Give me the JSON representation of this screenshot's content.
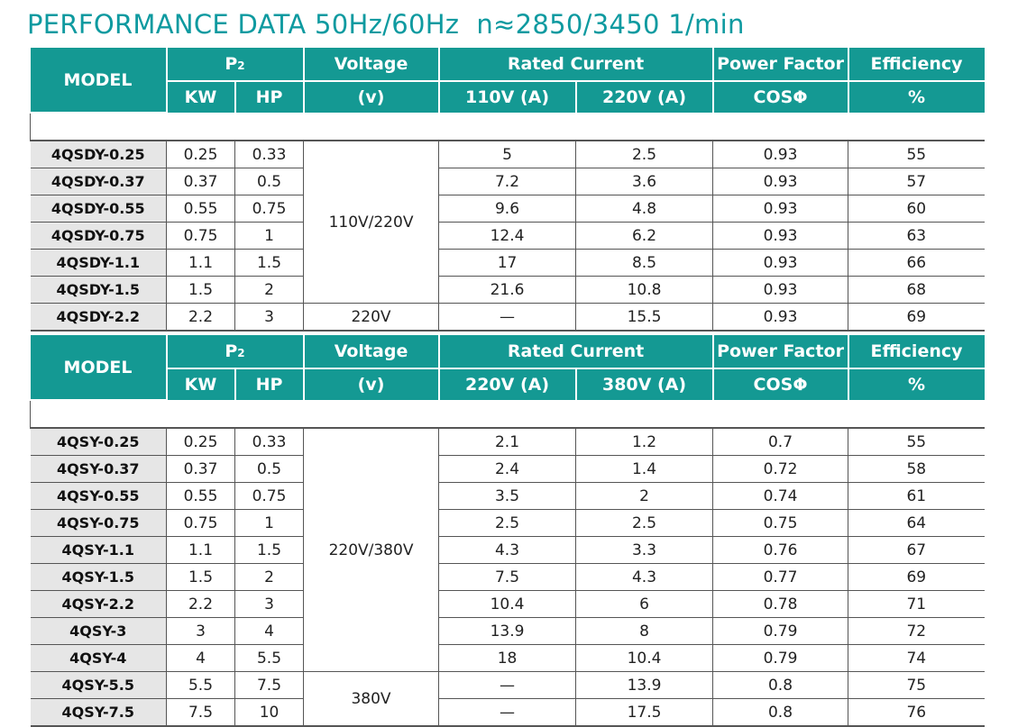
{
  "title": "PERFORMANCE DATA 50Hz/60Hz  n≈2850/3450 1/min",
  "table1": {
    "headers": {
      "model": "MODEL",
      "p2": "P",
      "p2_sub": "2",
      "voltage": "Voltage",
      "voltage_unit": "(v)",
      "rated_current": "Rated Current",
      "power_factor": "Power Factor",
      "efficiency": "Efficiency",
      "kw": "KW",
      "hp": "HP",
      "current_a": "110V (A)",
      "current_b": "220V (A)",
      "cos": "COSΦ",
      "eff_unit": "%"
    },
    "voltage_groups": [
      "110V/220V",
      "220V"
    ],
    "rows": [
      {
        "model": "4QSDY-0.25",
        "kw": "0.25",
        "hp": "0.33",
        "current_a": "5",
        "current_b": "2.5",
        "pf": "0.93",
        "eff": "55"
      },
      {
        "model": "4QSDY-0.37",
        "kw": "0.37",
        "hp": "0.5",
        "current_a": "7.2",
        "current_b": "3.6",
        "pf": "0.93",
        "eff": "57"
      },
      {
        "model": "4QSDY-0.55",
        "kw": "0.55",
        "hp": "0.75",
        "current_a": "9.6",
        "current_b": "4.8",
        "pf": "0.93",
        "eff": "60"
      },
      {
        "model": "4QSDY-0.75",
        "kw": "0.75",
        "hp": "1",
        "current_a": "12.4",
        "current_b": "6.2",
        "pf": "0.93",
        "eff": "63"
      },
      {
        "model": "4QSDY-1.1",
        "kw": "1.1",
        "hp": "1.5",
        "current_a": "17",
        "current_b": "8.5",
        "pf": "0.93",
        "eff": "66"
      },
      {
        "model": "4QSDY-1.5",
        "kw": "1.5",
        "hp": "2",
        "current_a": "21.6",
        "current_b": "10.8",
        "pf": "0.93",
        "eff": "68"
      },
      {
        "model": "4QSDY-2.2",
        "kw": "2.2",
        "hp": "3",
        "current_a": "—",
        "current_b": "15.5",
        "pf": "0.93",
        "eff": "69"
      }
    ]
  },
  "table2": {
    "headers": {
      "model": "MODEL",
      "p2": "P",
      "p2_sub": "2",
      "voltage": "Voltage",
      "voltage_unit": "(v)",
      "rated_current": "Rated Current",
      "power_factor": "Power Factor",
      "efficiency": "Efficiency",
      "kw": "KW",
      "hp": "HP",
      "current_a": "220V (A)",
      "current_b": "380V (A)",
      "cos": "COSΦ",
      "eff_unit": "%"
    },
    "voltage_groups": [
      "220V/380V",
      "380V"
    ],
    "rows": [
      {
        "model": "4QSY-0.25",
        "kw": "0.25",
        "hp": "0.33",
        "current_a": "2.1",
        "current_b": "1.2",
        "pf": "0.7",
        "eff": "55"
      },
      {
        "model": "4QSY-0.37",
        "kw": "0.37",
        "hp": "0.5",
        "current_a": "2.4",
        "current_b": "1.4",
        "pf": "0.72",
        "eff": "58"
      },
      {
        "model": "4QSY-0.55",
        "kw": "0.55",
        "hp": "0.75",
        "current_a": "3.5",
        "current_b": "2",
        "pf": "0.74",
        "eff": "61"
      },
      {
        "model": "4QSY-0.75",
        "kw": "0.75",
        "hp": "1",
        "current_a": "2.5",
        "current_b": "2.5",
        "pf": "0.75",
        "eff": "64"
      },
      {
        "model": "4QSY-1.1",
        "kw": "1.1",
        "hp": "1.5",
        "current_a": "4.3",
        "current_b": "3.3",
        "pf": "0.76",
        "eff": "67"
      },
      {
        "model": "4QSY-1.5",
        "kw": "1.5",
        "hp": "2",
        "current_a": "7.5",
        "current_b": "4.3",
        "pf": "0.77",
        "eff": "69"
      },
      {
        "model": "4QSY-2.2",
        "kw": "2.2",
        "hp": "3",
        "current_a": "10.4",
        "current_b": "6",
        "pf": "0.78",
        "eff": "71"
      },
      {
        "model": "4QSY-3",
        "kw": "3",
        "hp": "4",
        "current_a": "13.9",
        "current_b": "8",
        "pf": "0.79",
        "eff": "72"
      },
      {
        "model": "4QSY-4",
        "kw": "4",
        "hp": "5.5",
        "current_a": "18",
        "current_b": "10.4",
        "pf": "0.79",
        "eff": "74"
      },
      {
        "model": "4QSY-5.5",
        "kw": "5.5",
        "hp": "7.5",
        "current_a": "—",
        "current_b": "13.9",
        "pf": "0.8",
        "eff": "75"
      },
      {
        "model": "4QSY-7.5",
        "kw": "7.5",
        "hp": "10",
        "current_a": "—",
        "current_b": "17.5",
        "pf": "0.8",
        "eff": "76"
      }
    ]
  }
}
